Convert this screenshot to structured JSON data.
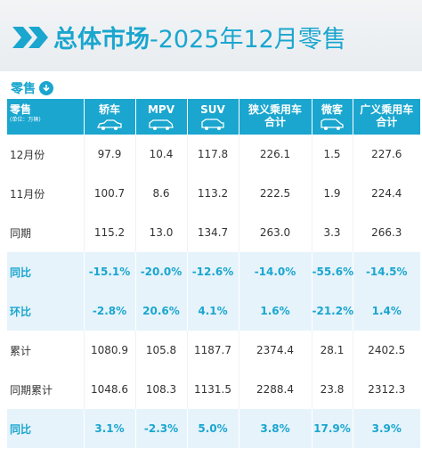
{
  "header": {
    "title_bold": "总体市场",
    "title_rest": "-2025年12月零售"
  },
  "section": {
    "label": "零售",
    "icon": "arrow-down-circle-icon"
  },
  "table": {
    "corner_label": "零售",
    "corner_unit": "(单位：万辆)",
    "columns": [
      {
        "label": "轿车",
        "icon": "sedan-icon"
      },
      {
        "label": "MPV",
        "icon": "mpv-icon"
      },
      {
        "label": "SUV",
        "icon": "suv-icon"
      },
      {
        "label": "狭义乘用车合计",
        "line1": "狭义乘用车",
        "line2": "合计"
      },
      {
        "label": "微客",
        "icon": "minivan-icon"
      },
      {
        "label": "广义乘用车合计",
        "line1": "广义乘用车",
        "line2": "合计"
      }
    ],
    "rows": [
      {
        "label": "12月份",
        "values": [
          "97.9",
          "10.4",
          "117.8",
          "226.1",
          "1.5",
          "227.6"
        ],
        "highlight": false
      },
      {
        "label": "11月份",
        "values": [
          "100.7",
          "8.6",
          "113.2",
          "222.5",
          "1.9",
          "224.4"
        ],
        "highlight": false
      },
      {
        "label": "同期",
        "values": [
          "115.2",
          "13.0",
          "134.7",
          "263.0",
          "3.3",
          "266.3"
        ],
        "highlight": false
      },
      {
        "label": "同比",
        "values": [
          "-15.1%",
          "-20.0%",
          "-12.6%",
          "-14.0%",
          "-55.6%",
          "-14.5%"
        ],
        "highlight": true
      },
      {
        "label": "环比",
        "values": [
          "-2.8%",
          "20.6%",
          "4.1%",
          "1.6%",
          "-21.2%",
          "1.4%"
        ],
        "highlight": true
      },
      {
        "label": "累计",
        "values": [
          "1080.9",
          "105.8",
          "1187.7",
          "2374.4",
          "28.1",
          "2402.5"
        ],
        "highlight": false
      },
      {
        "label": "同期累计",
        "values": [
          "1048.6",
          "108.3",
          "1131.5",
          "2288.4",
          "23.8",
          "2312.3"
        ],
        "highlight": false
      },
      {
        "label": "同比",
        "values": [
          "3.1%",
          "-2.3%",
          "5.0%",
          "3.8%",
          "17.9%",
          "3.9%"
        ],
        "highlight": true
      }
    ]
  },
  "colors": {
    "accent": "#1aa6cf",
    "highlight_row": "#e6f3fb"
  },
  "chart_data": {
    "type": "table",
    "title": "总体市场-2025年12月零售",
    "unit": "(单位：万辆)",
    "columns": [
      "轿车",
      "MPV",
      "SUV",
      "狭义乘用车合计",
      "微客",
      "广义乘用车合计"
    ],
    "rows": [
      {
        "label": "12月份",
        "values": [
          97.9,
          10.4,
          117.8,
          226.1,
          1.5,
          227.6
        ]
      },
      {
        "label": "11月份",
        "values": [
          100.7,
          8.6,
          113.2,
          222.5,
          1.9,
          224.4
        ]
      },
      {
        "label": "同期",
        "values": [
          115.2,
          13.0,
          134.7,
          263.0,
          3.3,
          266.3
        ]
      },
      {
        "label": "同比",
        "values": [
          "-15.1%",
          "-20.0%",
          "-12.6%",
          "-14.0%",
          "-55.6%",
          "-14.5%"
        ]
      },
      {
        "label": "环比",
        "values": [
          "-2.8%",
          "20.6%",
          "4.1%",
          "1.6%",
          "-21.2%",
          "1.4%"
        ]
      },
      {
        "label": "累计",
        "values": [
          1080.9,
          105.8,
          1187.7,
          2374.4,
          28.1,
          2402.5
        ]
      },
      {
        "label": "同期累计",
        "values": [
          1048.6,
          108.3,
          1131.5,
          2288.4,
          23.8,
          2312.3
        ]
      },
      {
        "label": "同比",
        "values": [
          "3.1%",
          "-2.3%",
          "5.0%",
          "3.8%",
          "17.9%",
          "3.9%"
        ]
      }
    ]
  }
}
